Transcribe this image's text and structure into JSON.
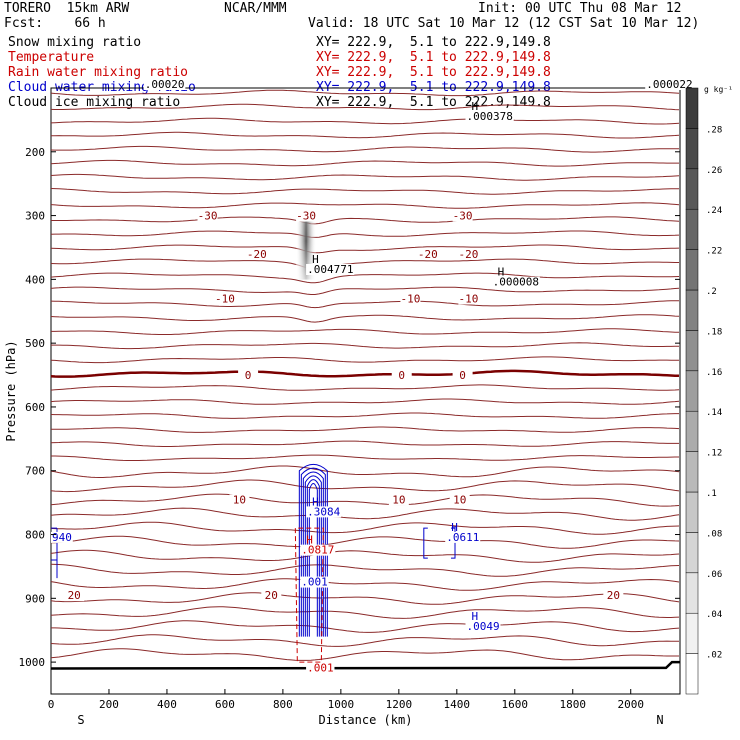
{
  "header": {
    "model": "TORERO  15km ARW",
    "forecast": "Fcst:    66 h",
    "center": "NCAR/MMM",
    "init": "Init: 00 UTC Thu 08 Mar 12",
    "valid": "Valid: 18 UTC Sat 10 Mar 12 (12 CST Sat 10 Mar 12)"
  },
  "fields": [
    {
      "name": "Snow mixing ratio",
      "xy": "XY= 222.9,  5.1 to 222.9,149.8",
      "color": "#000000"
    },
    {
      "name": "Temperature",
      "xy": "XY= 222.9,  5.1 to 222.9,149.8",
      "color": "#cc0000"
    },
    {
      "name": "Rain water mixing ratio",
      "xy": "XY= 222.9,  5.1 to 222.9,149.8",
      "color": "#cc0000"
    },
    {
      "name": "Cloud water mixing ratio",
      "xy": "XY= 222.9,  5.1 to 222.9,149.8",
      "color": "#0000cc"
    },
    {
      "name": "Cloud ice mixing ratio",
      "xy": "XY= 222.9,  5.1 to 222.9,149.8",
      "color": "#000000"
    }
  ],
  "chart_data": {
    "type": "contour-cross-section",
    "xlabel": "Distance (km)",
    "ylabel": "Pressure (hPa)",
    "xlim": [
      0,
      2170
    ],
    "ylim": [
      1050,
      100
    ],
    "xticks": [
      0,
      200,
      400,
      600,
      800,
      1000,
      1200,
      1400,
      1600,
      1800,
      2000
    ],
    "yticks": [
      200,
      300,
      400,
      500,
      600,
      700,
      800,
      900,
      1000
    ],
    "x_end_labels": {
      "left": "S",
      "right": "N"
    },
    "temperature_contours": [
      {
        "label": "-30",
        "p": 300,
        "labels_at": [
          540,
          880,
          1420
        ]
      },
      {
        "label": "-20",
        "p": 360,
        "labels_at": [
          710,
          1300,
          1440
        ]
      },
      {
        "label": "-10",
        "p": 430,
        "labels_at": [
          600,
          1240,
          1440
        ]
      },
      {
        "label": "0",
        "p": 550,
        "labels_at": [
          680,
          1210,
          1420
        ]
      },
      {
        "label": "10",
        "p": 745,
        "labels_at": [
          650,
          1200,
          1410
        ]
      },
      {
        "label": "20",
        "p": 895,
        "labels_at": [
          80,
          760,
          1940
        ]
      }
    ],
    "field_maxima": [
      {
        "field": "Snow mixing ratio",
        "x": 1430,
        "p": 150,
        "label": "H",
        "value": ".000378"
      },
      {
        "field": "Snow mixing ratio",
        "x": 2050,
        "p": 100,
        "label": "",
        "value": ".000022"
      },
      {
        "field": "Snow mixing ratio",
        "x": 320,
        "p": 100,
        "label": "",
        "value": ".00020"
      },
      {
        "field": "Cloud ice mixing ratio",
        "x": 880,
        "p": 390,
        "label": "H",
        "value": ".004771"
      },
      {
        "field": "Cloud ice mixing ratio",
        "x": 1520,
        "p": 410,
        "label": "H",
        "value": ".000008"
      },
      {
        "field": "Cloud water mixing ratio",
        "x": 880,
        "p": 770,
        "label": "H",
        "value": ".3084"
      },
      {
        "field": "Cloud water mixing ratio",
        "x": 1360,
        "p": 810,
        "label": "H",
        "value": ".0611"
      },
      {
        "field": "Cloud water mixing ratio",
        "x": 1430,
        "p": 950,
        "label": "H",
        "value": ".0049"
      },
      {
        "field": "Cloud water mixing ratio",
        "x": 0,
        "p": 810,
        "label": "",
        "value": "940"
      },
      {
        "field": "Cloud water mixing ratio",
        "x": 860,
        "p": 880,
        "label": "",
        "value": ".001"
      },
      {
        "field": "Rain water mixing ratio",
        "x": 860,
        "p": 830,
        "label": "H",
        "value": ".0817"
      },
      {
        "field": "Rain water mixing ratio",
        "x": 880,
        "p": 1015,
        "label": "",
        "value": ".001"
      }
    ],
    "colorbar": {
      "unit": "g kg⁻¹",
      "ticks": [
        ".02",
        ".04",
        ".06",
        ".08",
        ".1",
        ".12",
        ".14",
        ".16",
        ".18",
        ".2",
        ".22",
        ".24",
        ".26",
        ".28"
      ]
    }
  }
}
